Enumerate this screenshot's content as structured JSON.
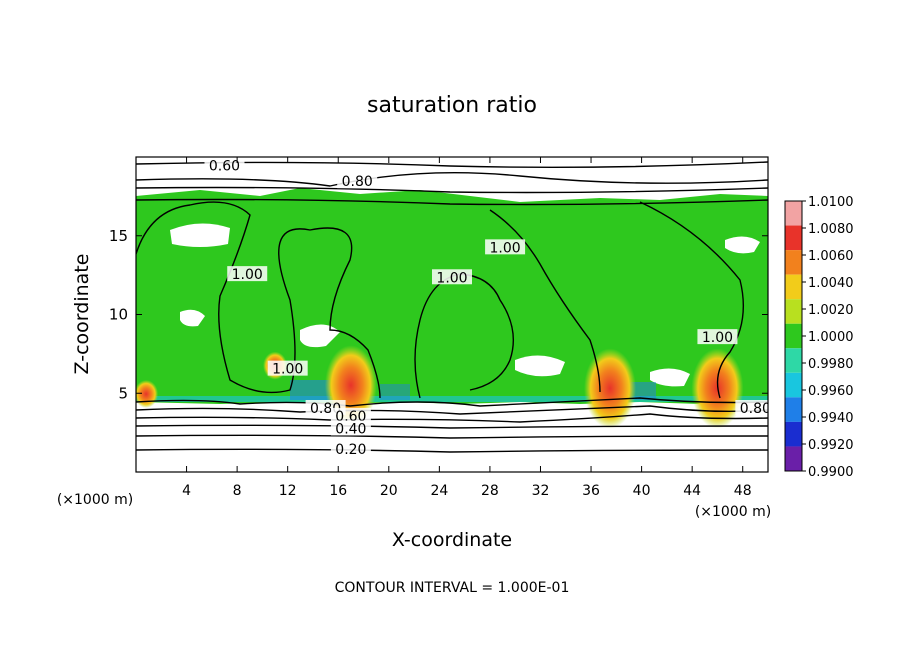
{
  "chart_data": {
    "type": "heatmap",
    "title": "saturation ratio",
    "xlabel": "X-coordinate",
    "ylabel": "Z-coordinate",
    "x_unit": "(×1000 m)",
    "y_unit": "(×1000 m)",
    "xlim": [
      0,
      50
    ],
    "ylim": [
      0,
      20
    ],
    "x_ticks": [
      4,
      8,
      12,
      16,
      20,
      24,
      28,
      32,
      36,
      40,
      44,
      48
    ],
    "y_ticks": [
      5,
      10,
      15
    ],
    "colorbar": {
      "labels": [
        "1.0100",
        "1.0080",
        "1.0060",
        "1.0040",
        "1.0020",
        "1.0000",
        "0.9980",
        "0.9960",
        "0.9940",
        "0.9920",
        "0.9900"
      ],
      "colors": [
        "#f2a3a3",
        "#e8332a",
        "#f2811d",
        "#f2cc1a",
        "#b8e01f",
        "#2ec81e",
        "#2ed8a6",
        "#19c6df",
        "#1f7fe8",
        "#1a2dd0",
        "#6a1fa8"
      ]
    },
    "field_color": "#2ec81e",
    "contour_labels": [
      {
        "text": "0.60",
        "x": 7.0,
        "y": 19.4
      },
      {
        "text": "0.80",
        "x": 17.5,
        "y": 18.4
      },
      {
        "text": "1.00",
        "x": 8.8,
        "y": 12.5
      },
      {
        "text": "1.00",
        "x": 25.0,
        "y": 12.3
      },
      {
        "text": "1.00",
        "x": 29.2,
        "y": 14.2
      },
      {
        "text": "1.00",
        "x": 46.0,
        "y": 8.5
      },
      {
        "text": "1.00",
        "x": 12.0,
        "y": 6.5
      },
      {
        "text": "0.80",
        "x": 15.0,
        "y": 4.0
      },
      {
        "text": "0.60",
        "x": 17.0,
        "y": 3.5
      },
      {
        "text": "0.40",
        "x": 17.0,
        "y": 2.7
      },
      {
        "text": "0.20",
        "x": 17.0,
        "y": 1.4
      },
      {
        "text": "0.80",
        "x": 49.0,
        "y": 4.0
      }
    ],
    "hotspots": [
      {
        "x": 17.0,
        "z": 5.0,
        "value": 1.008
      },
      {
        "x": 37.5,
        "z": 4.8,
        "value": 1.008
      },
      {
        "x": 46.0,
        "z": 4.8,
        "value": 1.008
      },
      {
        "x": 0.8,
        "z": 4.7,
        "value": 1.006
      },
      {
        "x": 11.0,
        "z": 6.5,
        "value": 1.004
      }
    ]
  },
  "footer": {
    "contour_interval": "CONTOUR INTERVAL = 1.000E-01"
  }
}
